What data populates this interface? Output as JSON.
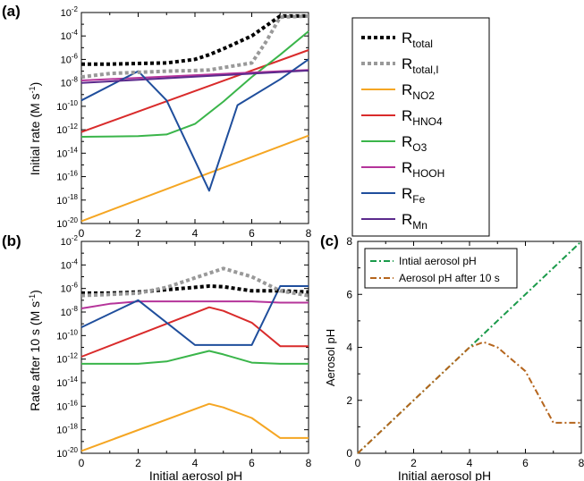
{
  "panels": {
    "a": {
      "label": "(a)",
      "ylabel": "Initial rate (M s",
      "ylabel_unit": "-1",
      "ylabel_close": ")"
    },
    "b": {
      "label": "(b)",
      "ylabel": "Rate after 10 s (M s",
      "ylabel_unit": "-1",
      "ylabel_close": ")",
      "xlabel": "Initial aerosol pH"
    },
    "c": {
      "label": "(c)",
      "ylabel": "Aerosol pH",
      "xlabel": "Initial aerosol pH"
    }
  },
  "legend_main": [
    {
      "base": "R",
      "sub": "total",
      "color": "#000000",
      "style": "dotted-bold"
    },
    {
      "base": "R",
      "sub": "total,I",
      "color": "#999999",
      "style": "dotted-bold"
    },
    {
      "base": "R",
      "sub": "NO2",
      "color": "#f5a623",
      "style": "solid"
    },
    {
      "base": "R",
      "sub": "HNO4",
      "color": "#d92b2b",
      "style": "solid"
    },
    {
      "base": "R",
      "sub": "O3",
      "color": "#3ab54a",
      "style": "solid"
    },
    {
      "base": "R",
      "sub": "HOOH",
      "color": "#b5349a",
      "style": "solid"
    },
    {
      "base": "R",
      "sub": "Fe",
      "color": "#1f4e9c",
      "style": "solid"
    },
    {
      "base": "R",
      "sub": "Mn",
      "color": "#5b2a8c",
      "style": "solid"
    }
  ],
  "chart_data": [
    {
      "type": "line",
      "panel": "a",
      "ylabel": "Initial rate (M s-1)",
      "yscale": "log",
      "xlim": [
        0,
        8
      ],
      "ylim_exp": [
        -20,
        -2
      ],
      "x_ticks": [
        0,
        2,
        4,
        6,
        8
      ],
      "y_tick_exponents": [
        -20,
        -18,
        -16,
        -14,
        -12,
        -10,
        -8,
        -6,
        -4,
        -2
      ],
      "series": [
        {
          "name": "Rtotal",
          "x": [
            0,
            1,
            2,
            3,
            4,
            4.5,
            5,
            6,
            7,
            8
          ],
          "log10_y": [
            -6.4,
            -6.4,
            -6.35,
            -6.3,
            -6.0,
            -5.6,
            -5.1,
            -4.0,
            -2.3,
            -2.3
          ]
        },
        {
          "name": "Rtotal,I",
          "x": [
            0,
            1,
            2,
            3,
            4,
            4.5,
            5,
            6,
            6.5,
            7,
            8
          ],
          "log10_y": [
            -7.5,
            -7.2,
            -7.1,
            -7.0,
            -6.95,
            -6.9,
            -6.7,
            -6.3,
            -4.5,
            -2.4,
            -2.3
          ]
        },
        {
          "name": "RNO2",
          "x": [
            0,
            8
          ],
          "log10_y": [
            -19.8,
            -12.5
          ]
        },
        {
          "name": "RHNO4",
          "x": [
            0,
            8
          ],
          "log10_y": [
            -12.2,
            -5.2
          ]
        },
        {
          "name": "RO3",
          "x": [
            0,
            2,
            3,
            4,
            5,
            6,
            7,
            8
          ],
          "log10_y": [
            -12.6,
            -12.55,
            -12.4,
            -11.5,
            -9.6,
            -7.5,
            -5.6,
            -3.6
          ]
        },
        {
          "name": "RHOOH",
          "x": [
            0,
            8
          ],
          "log10_y": [
            -7.8,
            -6.9
          ]
        },
        {
          "name": "RFe",
          "x": [
            0,
            2,
            3,
            4.5,
            5.5,
            7,
            8
          ],
          "log10_y": [
            -9.5,
            -7.0,
            -9.5,
            -17.2,
            -9.9,
            -7.7,
            -6.0
          ]
        },
        {
          "name": "RMn",
          "x": [
            0,
            8
          ],
          "log10_y": [
            -8.0,
            -6.95
          ]
        }
      ]
    },
    {
      "type": "line",
      "panel": "b",
      "ylabel": "Rate after 10 s (M s-1)",
      "xlabel": "Initial aerosol pH",
      "yscale": "log",
      "xlim": [
        0,
        8
      ],
      "ylim_exp": [
        -20,
        -2
      ],
      "x_ticks": [
        0,
        2,
        4,
        6,
        8
      ],
      "y_tick_exponents": [
        -20,
        -18,
        -16,
        -14,
        -12,
        -10,
        -8,
        -6,
        -4,
        -2
      ],
      "series": [
        {
          "name": "Rtotal",
          "x": [
            0,
            1,
            2,
            3,
            4,
            4.5,
            5,
            6,
            7,
            8
          ],
          "log10_y": [
            -6.4,
            -6.4,
            -6.3,
            -6.1,
            -5.9,
            -5.8,
            -5.85,
            -6.2,
            -6.2,
            -6.3
          ]
        },
        {
          "name": "Rtotal,I",
          "x": [
            0,
            1,
            2,
            3,
            4,
            5,
            6,
            7,
            8
          ],
          "log10_y": [
            -6.6,
            -6.5,
            -6.4,
            -5.9,
            -5.1,
            -4.3,
            -5.0,
            -6.2,
            -6.6
          ]
        },
        {
          "name": "RNO2",
          "x": [
            0,
            4.5,
            5,
            6,
            7,
            8
          ],
          "log10_y": [
            -19.8,
            -15.8,
            -16.1,
            -17.0,
            -18.7,
            -18.7
          ]
        },
        {
          "name": "RHNO4",
          "x": [
            0,
            4.5,
            5,
            6,
            7,
            8
          ],
          "log10_y": [
            -11.8,
            -7.6,
            -7.9,
            -8.9,
            -10.9,
            -10.9
          ]
        },
        {
          "name": "RO3",
          "x": [
            0,
            2,
            3,
            4,
            4.5,
            5,
            6,
            7,
            8
          ],
          "log10_y": [
            -12.4,
            -12.4,
            -12.2,
            -11.6,
            -11.3,
            -11.6,
            -12.3,
            -12.4,
            -12.4
          ]
        },
        {
          "name": "RHOOH",
          "x": [
            0,
            1,
            2,
            3,
            4,
            5,
            6,
            7,
            8
          ],
          "log10_y": [
            -7.7,
            -7.3,
            -7.1,
            -7.1,
            -7.1,
            -7.1,
            -7.1,
            -7.2,
            -7.2
          ]
        },
        {
          "name": "RFe",
          "x": [
            0,
            2,
            4,
            5,
            6,
            7,
            8
          ],
          "log10_y": [
            -9.3,
            -7.0,
            -10.8,
            -10.8,
            -10.8,
            -5.8,
            -5.8
          ]
        },
        {
          "name": "RMn",
          "x": [],
          "log10_y": []
        }
      ]
    },
    {
      "type": "line",
      "panel": "c",
      "ylabel": "Aerosol pH",
      "xlabel": "Initial aerosol pH",
      "xlim": [
        0,
        8
      ],
      "ylim": [
        0,
        8
      ],
      "x_ticks": [
        0,
        2,
        4,
        6,
        8
      ],
      "y_ticks": [
        0,
        2,
        4,
        6,
        8
      ],
      "legend": [
        {
          "name": "Intial aerosol pH",
          "color": "#1a9a4a"
        },
        {
          "name": "Aerosol pH after 10 s",
          "color": "#b5651d"
        }
      ],
      "series": [
        {
          "name": "Intial aerosol pH",
          "x": [
            0,
            8
          ],
          "y": [
            0,
            8
          ]
        },
        {
          "name": "Aerosol pH after 10 s",
          "x": [
            0,
            4,
            4.5,
            5,
            6,
            7,
            8
          ],
          "y": [
            0,
            4,
            4.2,
            4.0,
            3.1,
            1.15,
            1.15
          ]
        }
      ]
    }
  ]
}
